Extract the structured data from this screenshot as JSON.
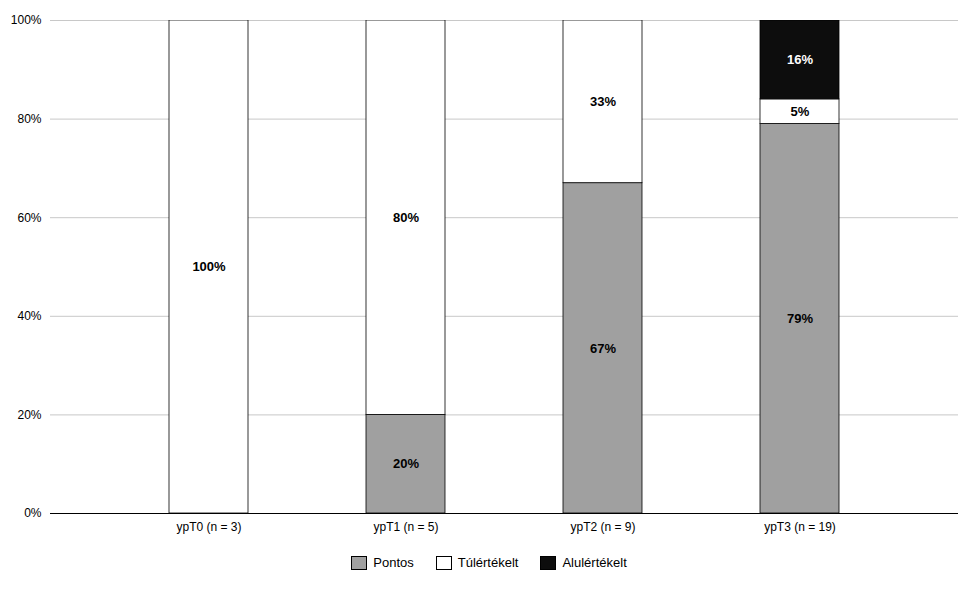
{
  "chart_data": {
    "type": "bar",
    "stacked": true,
    "categories": [
      "ypT0 (n = 3)",
      "ypT1 (n = 5)",
      "ypT2 (n = 9)",
      "ypT3 (n = 19)"
    ],
    "series": [
      {
        "name": "Pontos",
        "color": "#a0a0a0",
        "values": [
          0,
          20,
          67,
          79
        ],
        "value_labels": [
          null,
          "20%",
          "67%",
          "79%"
        ]
      },
      {
        "name": "Túlértékelt",
        "color": "#ffffff",
        "values": [
          100,
          80,
          33,
          5
        ],
        "value_labels": [
          "100%",
          "80%",
          "33%",
          "5%"
        ]
      },
      {
        "name": "Alulértékelt",
        "color": "#0d0d0d",
        "values": [
          0,
          0,
          0,
          16
        ],
        "value_labels": [
          null,
          null,
          null,
          "16%"
        ]
      }
    ],
    "ylim": [
      0,
      100
    ],
    "yticks": [
      {
        "value": 0,
        "label": "0%"
      },
      {
        "value": 20,
        "label": "20%"
      },
      {
        "value": 40,
        "label": "40%"
      },
      {
        "value": 60,
        "label": "60%"
      },
      {
        "value": 80,
        "label": "80%"
      },
      {
        "value": 100,
        "label": "100%"
      }
    ],
    "grid": true,
    "legend": "bottom",
    "data_labels": true
  }
}
